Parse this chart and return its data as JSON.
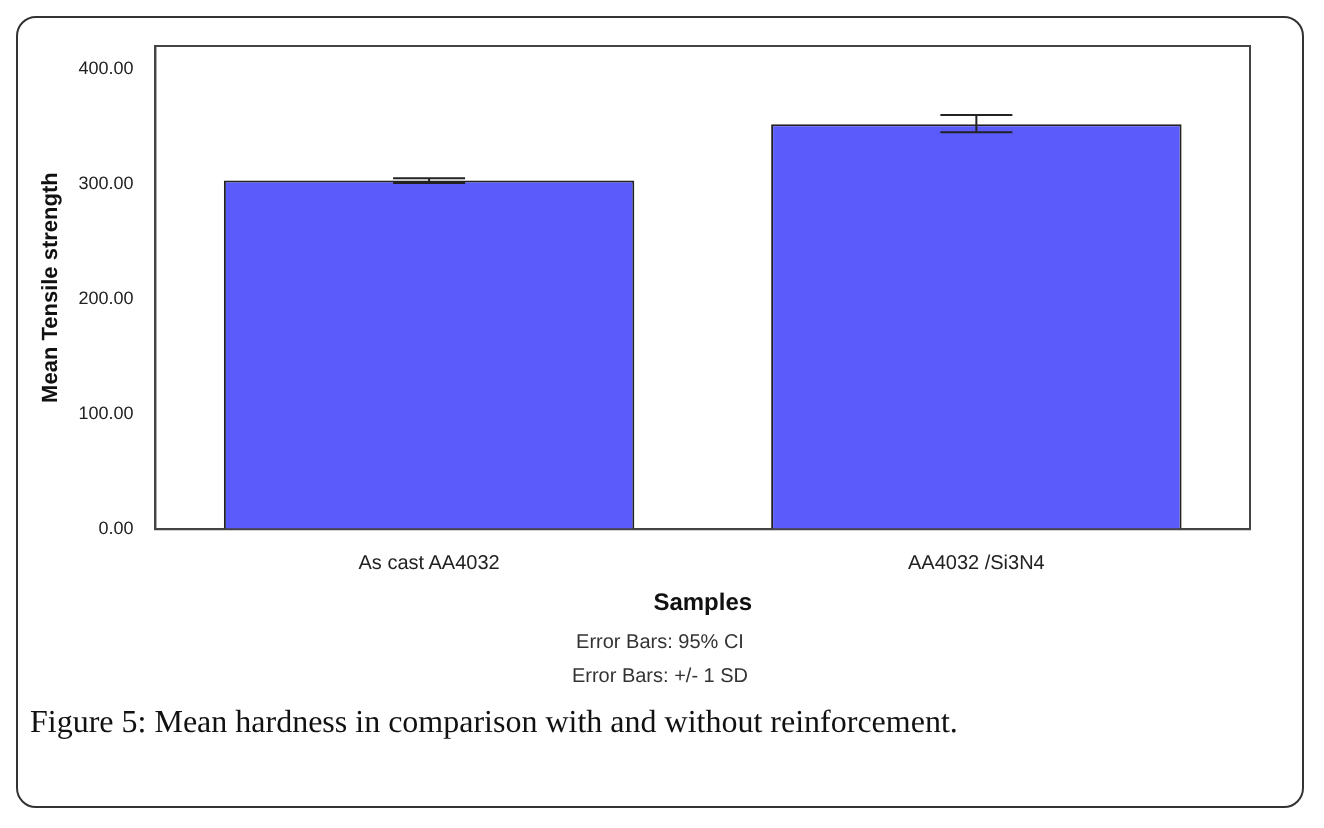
{
  "chart_data": {
    "type": "bar",
    "xlabel": "Samples",
    "ylabel": "Mean Tensile strength",
    "categories": [
      "As cast AA4032",
      "AA4032 /Si3N4"
    ],
    "values": [
      303,
      352
    ],
    "errors": [
      [
        301,
        305
      ],
      [
        345,
        360
      ]
    ],
    "color": "#5b5bfb",
    "ylim": [
      0,
      420
    ],
    "yticks": [
      {
        "value": 0,
        "label": "0.00"
      },
      {
        "value": 100,
        "label": "100.00"
      },
      {
        "value": 200,
        "label": "200.00"
      },
      {
        "value": 300,
        "label": "300.00"
      },
      {
        "value": 400,
        "label": "400.00"
      }
    ],
    "grid": false,
    "annotations": [
      "Error Bars: 95% CI",
      "Error Bars: +/- 1 SD",
      "Figure 5: Mean hardness in comparison with and without reinforcement."
    ]
  }
}
